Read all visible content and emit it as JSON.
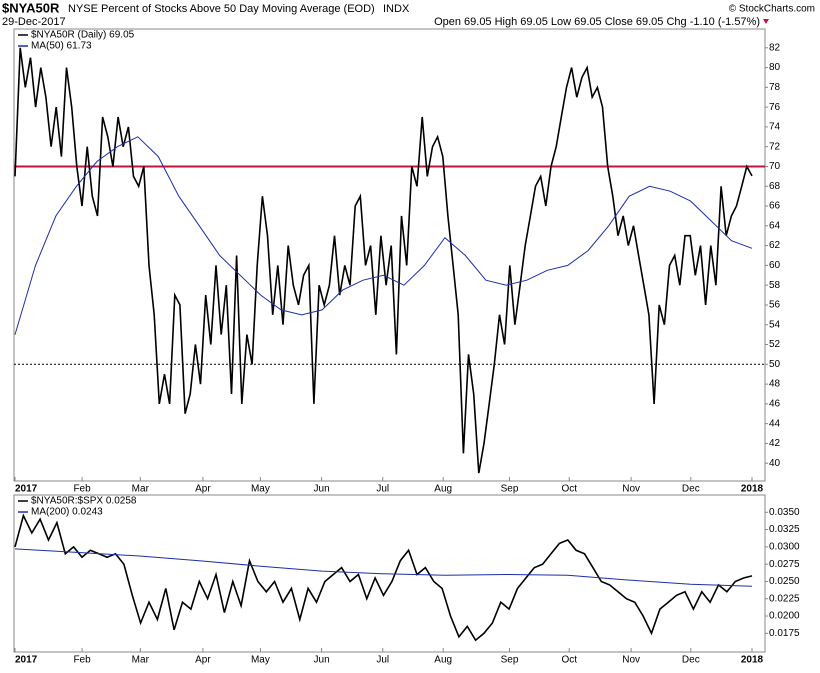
{
  "header": {
    "symbol": "$NYA50R",
    "name": "NYSE Percent of Stocks Above 50 Day Moving Average (EOD)",
    "exchange": "INDX",
    "date": "29-Dec-2017",
    "quote": "Open 69.05  High 69.05  Low 69.05  Close 69.05  Chg -1.10 (-1.57%)",
    "credit": "© StockCharts.com"
  },
  "x_labels": [
    "2017",
    "Feb",
    "Mar",
    "Apr",
    "May",
    "Jun",
    "Jul",
    "Aug",
    "Sep",
    "Oct",
    "Nov",
    "Dec",
    "2018"
  ],
  "chart_data": [
    {
      "type": "line",
      "ylim": [
        38.2,
        83.9
      ],
      "yticks": [
        40,
        42,
        44,
        46,
        48,
        50,
        52,
        54,
        56,
        58,
        60,
        62,
        64,
        66,
        68,
        70,
        72,
        74,
        76,
        78,
        80,
        82
      ],
      "reference_lines": [
        {
          "value": 70,
          "color": "#c0143c",
          "style": "solid"
        },
        {
          "value": 50,
          "color": "#000000",
          "style": "dotted"
        }
      ],
      "series": [
        {
          "name": "$NYA50R (Daily) 69.05",
          "color": "#000000",
          "values": [
            69,
            82,
            78,
            81,
            76,
            80,
            77,
            72,
            76,
            71,
            80,
            76,
            70,
            66,
            72,
            67,
            65,
            75,
            73,
            70,
            75,
            72,
            74,
            69,
            68,
            70,
            60,
            55,
            46,
            49,
            46,
            57,
            56,
            45,
            47,
            52,
            48,
            57,
            52,
            60,
            53,
            58,
            47,
            61,
            46,
            53,
            50,
            60,
            67,
            63,
            55,
            60,
            54,
            62,
            58,
            56,
            59,
            60,
            46,
            58,
            56,
            58,
            63,
            57,
            60,
            58,
            66,
            67,
            60,
            62,
            55,
            63,
            58,
            62,
            51,
            65,
            60,
            70,
            68,
            75,
            69,
            72,
            73,
            71,
            65,
            60,
            55,
            41,
            51,
            47,
            39,
            42,
            46,
            50,
            55,
            52,
            60,
            54,
            58,
            62,
            65,
            68,
            69,
            66,
            70,
            72,
            75,
            78,
            80,
            77,
            79,
            80,
            77,
            78,
            76,
            70,
            67,
            63,
            65,
            62,
            64,
            61,
            58,
            55,
            46,
            56,
            54,
            60,
            61,
            58,
            63,
            63,
            59,
            62,
            56,
            62,
            58,
            68,
            63,
            65,
            66,
            68,
            70,
            69.05
          ]
        },
        {
          "name": "MA(50) 61.73",
          "color": "#1c2fa8",
          "values": [
            53,
            60,
            65,
            68,
            70.5,
            72,
            73,
            71,
            67,
            64,
            61,
            59,
            57,
            55.5,
            55,
            55.5,
            57.5,
            58.5,
            59,
            58,
            60,
            62.8,
            61,
            58.5,
            58,
            58.5,
            59.5,
            60,
            61.5,
            64,
            67,
            68,
            67.5,
            66.5,
            64.5,
            62.5,
            61.73
          ]
        }
      ]
    },
    {
      "type": "line",
      "ylim": [
        0.0148,
        0.0375
      ],
      "yticks": [
        0.0175,
        {
          "value": 0.02,
          "label": "0.0200"
        },
        0.0225,
        {
          "value": 0.025,
          "label": "0.0250"
        },
        0.0275,
        {
          "value": 0.03,
          "label": "0.0300"
        },
        0.0325,
        {
          "value": 0.035,
          "label": "0.0350"
        }
      ],
      "series": [
        {
          "name": "$NYA50R:$SPX 0.0258",
          "color": "#000000",
          "values": [
            0.03,
            0.0345,
            0.032,
            0.034,
            0.031,
            0.0335,
            0.029,
            0.03,
            0.0285,
            0.0295,
            0.029,
            0.0285,
            0.029,
            0.0275,
            0.023,
            0.019,
            0.022,
            0.0195,
            0.024,
            0.018,
            0.022,
            0.021,
            0.025,
            0.0225,
            0.026,
            0.0205,
            0.025,
            0.0215,
            0.028,
            0.025,
            0.0235,
            0.025,
            0.022,
            0.024,
            0.0195,
            0.024,
            0.022,
            0.025,
            0.026,
            0.027,
            0.025,
            0.026,
            0.0225,
            0.0255,
            0.023,
            0.025,
            0.028,
            0.0295,
            0.026,
            0.027,
            0.025,
            0.024,
            0.02,
            0.017,
            0.0185,
            0.0165,
            0.0175,
            0.019,
            0.022,
            0.021,
            0.024,
            0.0255,
            0.027,
            0.0275,
            0.029,
            0.0305,
            0.031,
            0.0295,
            0.029,
            0.027,
            0.025,
            0.0245,
            0.0235,
            0.0225,
            0.022,
            0.02,
            0.0175,
            0.021,
            0.022,
            0.023,
            0.0235,
            0.021,
            0.0235,
            0.022,
            0.0245,
            0.0235,
            0.025,
            0.0255,
            0.0258
          ]
        },
        {
          "name": "MA(200) 0.0243",
          "color": "#1c2fa8",
          "values": [
            0.0297,
            0.0292,
            0.0287,
            0.028,
            0.0272,
            0.0265,
            0.0261,
            0.0259,
            0.026,
            0.0259,
            0.0252,
            0.0246,
            0.0243
          ]
        }
      ]
    }
  ]
}
